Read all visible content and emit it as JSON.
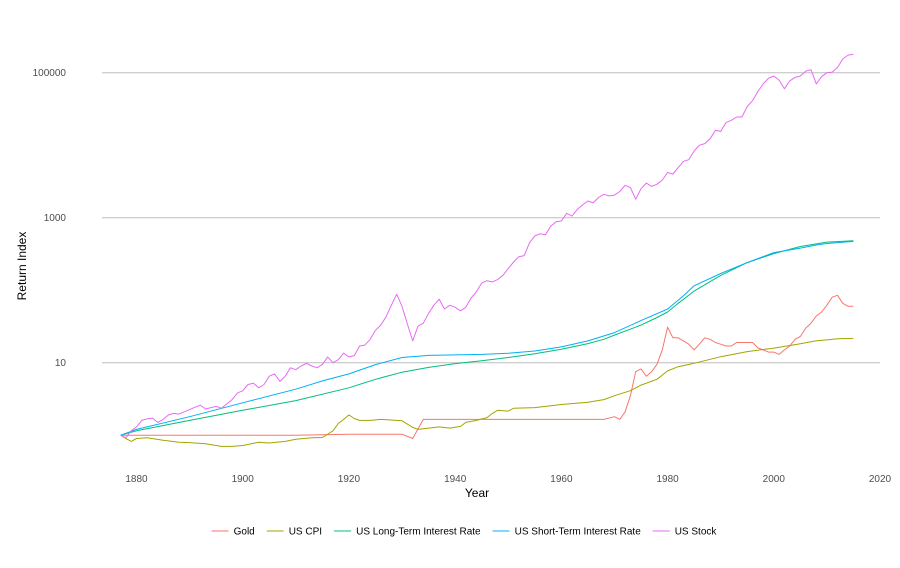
{
  "chart_data": {
    "type": "line",
    "xlabel": "Year",
    "ylabel": "Return Index",
    "xlim": [
      1873.5,
      2020
    ],
    "ylim": [
      0.5,
      500000
    ],
    "y_scale": "log",
    "x_ticks": [
      1880,
      1900,
      1920,
      1940,
      1960,
      1980,
      2000,
      2020
    ],
    "y_ticks": [
      {
        "value": 10,
        "label": "10"
      },
      {
        "value": 1000,
        "label": "1000"
      },
      {
        "value": 100000,
        "label": "100000"
      }
    ],
    "grid": "horizontal major",
    "legend_position": "bottom",
    "series": [
      {
        "name": "Gold",
        "color": "#F8766D",
        "points": [
          [
            1877,
            1
          ],
          [
            1890,
            1
          ],
          [
            1900,
            1
          ],
          [
            1910,
            1
          ],
          [
            1920,
            1.03
          ],
          [
            1930,
            1.03
          ],
          [
            1932,
            0.9
          ],
          [
            1934,
            1.65
          ],
          [
            1940,
            1.65
          ],
          [
            1950,
            1.65
          ],
          [
            1960,
            1.65
          ],
          [
            1968,
            1.65
          ],
          [
            1970,
            1.8
          ],
          [
            1971,
            1.65
          ],
          [
            1972,
            2.1
          ],
          [
            1973,
            3.5
          ],
          [
            1974,
            7.5
          ],
          [
            1975,
            8.2
          ],
          [
            1976,
            6.5
          ],
          [
            1977,
            7.5
          ],
          [
            1978,
            9.5
          ],
          [
            1979,
            15
          ],
          [
            1980,
            31
          ],
          [
            1981,
            22
          ],
          [
            1982,
            22
          ],
          [
            1983,
            20
          ],
          [
            1984,
            18
          ],
          [
            1985,
            15
          ],
          [
            1986,
            18
          ],
          [
            1987,
            22
          ],
          [
            1988,
            21
          ],
          [
            1989,
            19
          ],
          [
            1990,
            18
          ],
          [
            1991,
            17
          ],
          [
            1992,
            17
          ],
          [
            1993,
            19
          ],
          [
            1994,
            19
          ],
          [
            1995,
            19
          ],
          [
            1996,
            19
          ],
          [
            1997,
            16
          ],
          [
            1998,
            15
          ],
          [
            1999,
            14
          ],
          [
            2000,
            14
          ],
          [
            2001,
            13
          ],
          [
            2002,
            15
          ],
          [
            2003,
            17
          ],
          [
            2004,
            21
          ],
          [
            2005,
            23
          ],
          [
            2006,
            30
          ],
          [
            2007,
            35
          ],
          [
            2008,
            44
          ],
          [
            2009,
            50
          ],
          [
            2010,
            62
          ],
          [
            2011,
            80
          ],
          [
            2012,
            85
          ],
          [
            2013,
            66
          ],
          [
            2014,
            60
          ],
          [
            2015,
            60
          ]
        ]
      },
      {
        "name": "US CPI",
        "color": "#A3A500",
        "points": [
          [
            1877,
            1
          ],
          [
            1878,
            0.9
          ],
          [
            1879,
            0.82
          ],
          [
            1880,
            0.9
          ],
          [
            1882,
            0.92
          ],
          [
            1885,
            0.85
          ],
          [
            1888,
            0.8
          ],
          [
            1890,
            0.79
          ],
          [
            1893,
            0.76
          ],
          [
            1896,
            0.7
          ],
          [
            1898,
            0.7
          ],
          [
            1900,
            0.72
          ],
          [
            1903,
            0.8
          ],
          [
            1905,
            0.78
          ],
          [
            1908,
            0.82
          ],
          [
            1910,
            0.88
          ],
          [
            1913,
            0.92
          ],
          [
            1915,
            0.93
          ],
          [
            1917,
            1.15
          ],
          [
            1918,
            1.45
          ],
          [
            1919,
            1.65
          ],
          [
            1920,
            1.9
          ],
          [
            1921,
            1.7
          ],
          [
            1922,
            1.6
          ],
          [
            1924,
            1.6
          ],
          [
            1926,
            1.65
          ],
          [
            1929,
            1.6
          ],
          [
            1930,
            1.58
          ],
          [
            1931,
            1.42
          ],
          [
            1932,
            1.28
          ],
          [
            1933,
            1.2
          ],
          [
            1935,
            1.25
          ],
          [
            1937,
            1.3
          ],
          [
            1939,
            1.25
          ],
          [
            1941,
            1.32
          ],
          [
            1942,
            1.5
          ],
          [
            1944,
            1.6
          ],
          [
            1946,
            1.75
          ],
          [
            1947,
            2.0
          ],
          [
            1948,
            2.2
          ],
          [
            1950,
            2.15
          ],
          [
            1951,
            2.35
          ],
          [
            1955,
            2.4
          ],
          [
            1960,
            2.65
          ],
          [
            1965,
            2.85
          ],
          [
            1968,
            3.1
          ],
          [
            1970,
            3.5
          ],
          [
            1973,
            4.1
          ],
          [
            1975,
            4.9
          ],
          [
            1978,
            5.9
          ],
          [
            1980,
            7.7
          ],
          [
            1982,
            8.8
          ],
          [
            1985,
            9.8
          ],
          [
            1990,
            12.1
          ],
          [
            1995,
            14.2
          ],
          [
            2000,
            15.9
          ],
          [
            2005,
            18.2
          ],
          [
            2008,
            20.1
          ],
          [
            2010,
            20.6
          ],
          [
            2012,
            21.4
          ],
          [
            2015,
            21.6
          ]
        ]
      },
      {
        "name": "US Long-Term Interest Rate",
        "color": "#00BF7D",
        "points": [
          [
            1877,
            1
          ],
          [
            1880,
            1.15
          ],
          [
            1890,
            1.6
          ],
          [
            1900,
            2.2
          ],
          [
            1910,
            3.0
          ],
          [
            1920,
            4.5
          ],
          [
            1925,
            5.9
          ],
          [
            1930,
            7.4
          ],
          [
            1935,
            8.6
          ],
          [
            1940,
            9.7
          ],
          [
            1945,
            10.6
          ],
          [
            1950,
            11.8
          ],
          [
            1955,
            13.3
          ],
          [
            1960,
            15.3
          ],
          [
            1965,
            18.3
          ],
          [
            1968,
            21
          ],
          [
            1970,
            24
          ],
          [
            1975,
            33
          ],
          [
            1978,
            42
          ],
          [
            1980,
            50
          ],
          [
            1982,
            66
          ],
          [
            1985,
            97
          ],
          [
            1990,
            160
          ],
          [
            1995,
            240
          ],
          [
            2000,
            320
          ],
          [
            2005,
            400
          ],
          [
            2010,
            460
          ],
          [
            2015,
            480
          ]
        ]
      },
      {
        "name": "US Short-Term Interest Rate",
        "color": "#00B0F6",
        "points": [
          [
            1877,
            1
          ],
          [
            1880,
            1.2
          ],
          [
            1890,
            1.8
          ],
          [
            1900,
            2.8
          ],
          [
            1910,
            4.3
          ],
          [
            1915,
            5.6
          ],
          [
            1920,
            7.0
          ],
          [
            1925,
            9.4
          ],
          [
            1930,
            11.8
          ],
          [
            1935,
            12.6
          ],
          [
            1940,
            12.8
          ],
          [
            1945,
            13
          ],
          [
            1950,
            13.5
          ],
          [
            1955,
            14.5
          ],
          [
            1960,
            16.5
          ],
          [
            1965,
            20
          ],
          [
            1970,
            26
          ],
          [
            1975,
            38
          ],
          [
            1980,
            55
          ],
          [
            1983,
            84
          ],
          [
            1985,
            115
          ],
          [
            1990,
            170
          ],
          [
            1995,
            240
          ],
          [
            2000,
            330
          ],
          [
            2005,
            380
          ],
          [
            2008,
            420
          ],
          [
            2010,
            440
          ],
          [
            2015,
            470
          ]
        ]
      },
      {
        "name": "US Stock",
        "color": "#E76BF3",
        "points": [
          [
            1877,
            1
          ],
          [
            1878,
            0.92
          ],
          [
            1879,
            1.15
          ],
          [
            1880,
            1.3
          ],
          [
            1881,
            1.6
          ],
          [
            1882,
            1.68
          ],
          [
            1883,
            1.72
          ],
          [
            1884,
            1.5
          ],
          [
            1885,
            1.65
          ],
          [
            1886,
            1.9
          ],
          [
            1887,
            2
          ],
          [
            1888,
            1.95
          ],
          [
            1890,
            2.25
          ],
          [
            1892,
            2.6
          ],
          [
            1893,
            2.3
          ],
          [
            1895,
            2.5
          ],
          [
            1896,
            2.35
          ],
          [
            1897,
            2.7
          ],
          [
            1898,
            3.1
          ],
          [
            1899,
            3.8
          ],
          [
            1900,
            4.1
          ],
          [
            1901,
            5
          ],
          [
            1902,
            5.2
          ],
          [
            1903,
            4.5
          ],
          [
            1904,
            5
          ],
          [
            1905,
            6.5
          ],
          [
            1906,
            7
          ],
          [
            1907,
            5.5
          ],
          [
            1908,
            6.5
          ],
          [
            1909,
            8.5
          ],
          [
            1910,
            8
          ],
          [
            1911,
            9
          ],
          [
            1912,
            9.8
          ],
          [
            1913,
            9
          ],
          [
            1914,
            8.5
          ],
          [
            1915,
            9.5
          ],
          [
            1916,
            12
          ],
          [
            1917,
            10
          ],
          [
            1918,
            11
          ],
          [
            1919,
            13.5
          ],
          [
            1920,
            12
          ],
          [
            1921,
            12.5
          ],
          [
            1922,
            17
          ],
          [
            1923,
            17.5
          ],
          [
            1924,
            21
          ],
          [
            1925,
            28
          ],
          [
            1926,
            33
          ],
          [
            1927,
            43
          ],
          [
            1928,
            62
          ],
          [
            1929,
            88
          ],
          [
            1930,
            60
          ],
          [
            1931,
            34
          ],
          [
            1932,
            20
          ],
          [
            1933,
            32
          ],
          [
            1934,
            35
          ],
          [
            1935,
            48
          ],
          [
            1936,
            62
          ],
          [
            1937,
            75
          ],
          [
            1938,
            55
          ],
          [
            1939,
            62
          ],
          [
            1940,
            58
          ],
          [
            1941,
            52
          ],
          [
            1942,
            58
          ],
          [
            1943,
            78
          ],
          [
            1944,
            95
          ],
          [
            1945,
            125
          ],
          [
            1946,
            135
          ],
          [
            1947,
            130
          ],
          [
            1948,
            140
          ],
          [
            1949,
            160
          ],
          [
            1950,
            200
          ],
          [
            1951,
            245
          ],
          [
            1952,
            290
          ],
          [
            1953,
            300
          ],
          [
            1954,
            450
          ],
          [
            1955,
            560
          ],
          [
            1956,
            600
          ],
          [
            1957,
            580
          ],
          [
            1958,
            760
          ],
          [
            1959,
            880
          ],
          [
            1960,
            900
          ],
          [
            1961,
            1150
          ],
          [
            1962,
            1050
          ],
          [
            1963,
            1300
          ],
          [
            1964,
            1500
          ],
          [
            1965,
            1700
          ],
          [
            1966,
            1600
          ],
          [
            1967,
            1900
          ],
          [
            1968,
            2100
          ],
          [
            1969,
            2000
          ],
          [
            1970,
            2050
          ],
          [
            1971,
            2300
          ],
          [
            1972,
            2800
          ],
          [
            1973,
            2600
          ],
          [
            1974,
            1800
          ],
          [
            1975,
            2500
          ],
          [
            1976,
            3000
          ],
          [
            1977,
            2700
          ],
          [
            1978,
            2900
          ],
          [
            1979,
            3300
          ],
          [
            1980,
            4200
          ],
          [
            1981,
            4000
          ],
          [
            1982,
            4900
          ],
          [
            1983,
            6000
          ],
          [
            1984,
            6300
          ],
          [
            1985,
            8300
          ],
          [
            1986,
            10000
          ],
          [
            1987,
            10500
          ],
          [
            1988,
            12300
          ],
          [
            1989,
            16000
          ],
          [
            1990,
            15500
          ],
          [
            1991,
            20500
          ],
          [
            1992,
            22000
          ],
          [
            1993,
            24500
          ],
          [
            1994,
            24500
          ],
          [
            1995,
            34000
          ],
          [
            1996,
            41000
          ],
          [
            1997,
            55000
          ],
          [
            1998,
            70000
          ],
          [
            1999,
            84000
          ],
          [
            2000,
            90000
          ],
          [
            2001,
            79000
          ],
          [
            2002,
            60000
          ],
          [
            2003,
            77000
          ],
          [
            2004,
            86000
          ],
          [
            2005,
            90000
          ],
          [
            2006,
            105000
          ],
          [
            2007,
            110000
          ],
          [
            2008,
            70000
          ],
          [
            2009,
            88000
          ],
          [
            2010,
            100000
          ],
          [
            2011,
            102000
          ],
          [
            2012,
            118000
          ],
          [
            2013,
            155000
          ],
          [
            2014,
            175000
          ],
          [
            2015,
            180000
          ]
        ]
      }
    ]
  }
}
